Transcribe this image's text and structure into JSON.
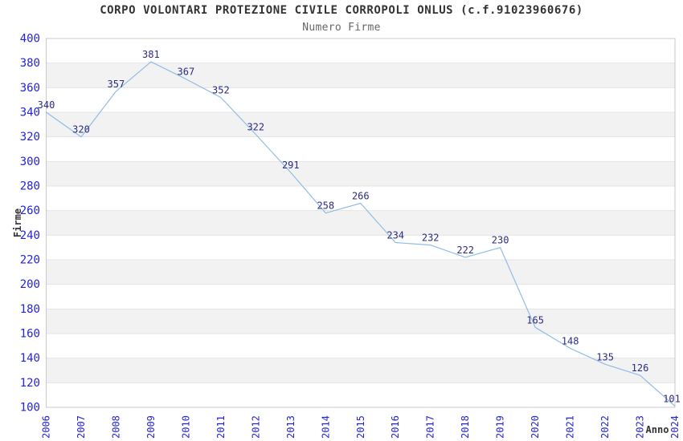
{
  "header": {
    "title": "CORPO VOLONTARI PROTEZIONE CIVILE CORROPOLI ONLUS (c.f.91023960676)",
    "subtitle": "Numero Firme"
  },
  "chart_data": {
    "type": "line",
    "title": "CORPO VOLONTARI PROTEZIONE CIVILE CORROPOLI ONLUS (c.f.91023960676)",
    "subtitle": "Numero Firme",
    "xlabel": "Anno",
    "ylabel": "Firme",
    "categories": [
      "2006",
      "2007",
      "2008",
      "2009",
      "2010",
      "2011",
      "2012",
      "2013",
      "2014",
      "2015",
      "2016",
      "2017",
      "2018",
      "2019",
      "2020",
      "2021",
      "2022",
      "2023",
      "2024"
    ],
    "values": [
      340,
      320,
      357,
      381,
      367,
      352,
      322,
      291,
      258,
      266,
      234,
      232,
      222,
      230,
      165,
      148,
      135,
      126,
      101
    ],
    "ylim": [
      100,
      400
    ],
    "ytick_step": 20,
    "grid": "alternating-horizontal-bands",
    "legend": "none",
    "line_color": "#90bce8",
    "tick_label_color": "#2323d7",
    "data_label_color": "#2b2b80",
    "band_color": "#f2f2f2",
    "gridline_color": "#e4e4e4",
    "border_color": "#c8c8c8",
    "title_color": "#333333",
    "subtitle_color": "#666666",
    "axis_title_color": "#333333"
  }
}
